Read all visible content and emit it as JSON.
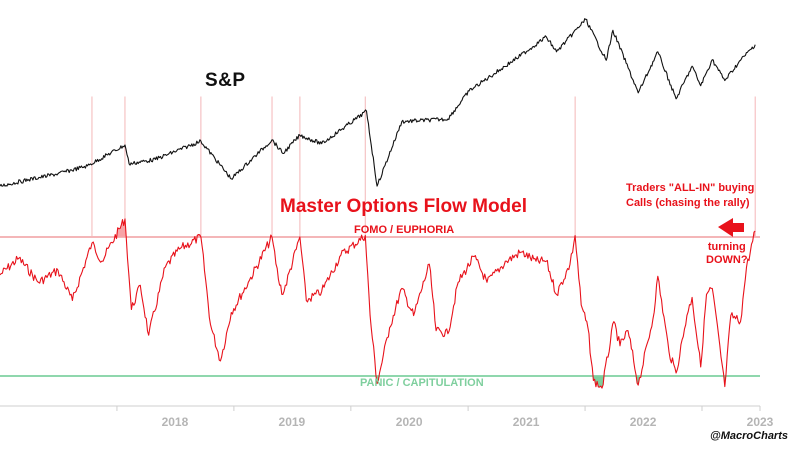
{
  "colors": {
    "spx_line": "#111111",
    "model_line": "#e8121b",
    "fomo_line": "#f4b6b8",
    "panic_line": "#8fd7ad",
    "fomo_fill": "#f7a3a7",
    "panic_fill": "#7fcf9e",
    "axis": "#cfcfcf",
    "tick_label": "#b5b5b5"
  },
  "labels": {
    "spx": "S&P",
    "model_title": "Master Options Flow Model",
    "fomo": "FOMO / EUPHORIA",
    "panic": "PANIC / CAPITULATION",
    "annotation_line1": "Traders \"ALL-IN\" buying",
    "annotation_line2": "Calls (chasing the rally)",
    "turning_line1": "turning",
    "turning_line2": "DOWN?",
    "credit": "@MacroCharts"
  },
  "chart_data": {
    "type": "line",
    "x_axis": {
      "range": [
        "2017-01-01",
        "2023-07-01"
      ],
      "tick_labels": [
        "2018",
        "2019",
        "2020",
        "2021",
        "2022",
        "2023"
      ]
    },
    "series": [
      {
        "name": "S&P",
        "points": [
          [
            "2017-01-01",
            2240
          ],
          [
            "2017-04-01",
            2340
          ],
          [
            "2017-07-01",
            2430
          ],
          [
            "2017-10-01",
            2550
          ],
          [
            "2018-01-26",
            2870
          ],
          [
            "2018-02-08",
            2580
          ],
          [
            "2018-05-01",
            2650
          ],
          [
            "2018-09-20",
            2930
          ],
          [
            "2018-12-24",
            2350
          ],
          [
            "2019-04-30",
            2950
          ],
          [
            "2019-06-03",
            2740
          ],
          [
            "2019-07-26",
            3020
          ],
          [
            "2019-10-02",
            2890
          ],
          [
            "2020-02-19",
            3390
          ],
          [
            "2020-03-23",
            2240
          ],
          [
            "2020-06-08",
            3230
          ],
          [
            "2020-10-30",
            3270
          ],
          [
            "2021-01-04",
            3700
          ],
          [
            "2021-06-01",
            4200
          ],
          [
            "2021-09-02",
            4530
          ],
          [
            "2021-10-04",
            4300
          ],
          [
            "2022-01-03",
            4800
          ],
          [
            "2022-03-08",
            4170
          ],
          [
            "2022-03-29",
            4630
          ],
          [
            "2022-06-16",
            3670
          ],
          [
            "2022-08-16",
            4300
          ],
          [
            "2022-10-12",
            3580
          ],
          [
            "2022-12-01",
            4080
          ],
          [
            "2022-12-28",
            3780
          ],
          [
            "2023-02-02",
            4180
          ],
          [
            "2023-03-13",
            3860
          ],
          [
            "2023-05-01",
            4170
          ],
          [
            "2023-06-16",
            4410
          ]
        ]
      },
      {
        "name": "Master Options Flow Model",
        "points": [
          [
            "2017-01-01",
            75
          ],
          [
            "2017-03-01",
            86
          ],
          [
            "2017-05-01",
            70
          ],
          [
            "2017-07-01",
            78
          ],
          [
            "2017-08-15",
            58
          ],
          [
            "2017-10-15",
            96
          ],
          [
            "2017-11-15",
            84
          ],
          [
            "2018-01-26",
            112
          ],
          [
            "2018-02-15",
            52
          ],
          [
            "2018-03-15",
            68
          ],
          [
            "2018-04-10",
            35
          ],
          [
            "2018-06-01",
            80
          ],
          [
            "2018-07-15",
            92
          ],
          [
            "2018-09-20",
            100
          ],
          [
            "2018-10-20",
            42
          ],
          [
            "2018-11-20",
            18
          ],
          [
            "2018-12-24",
            50
          ],
          [
            "2019-02-15",
            70
          ],
          [
            "2019-04-30",
            100
          ],
          [
            "2019-05-20",
            72
          ],
          [
            "2019-06-03",
            62
          ],
          [
            "2019-07-26",
            100
          ],
          [
            "2019-08-15",
            58
          ],
          [
            "2019-10-02",
            64
          ],
          [
            "2019-12-01",
            88
          ],
          [
            "2020-02-15",
            101
          ],
          [
            "2020-03-01",
            48
          ],
          [
            "2020-03-23",
            3
          ],
          [
            "2020-05-01",
            40
          ],
          [
            "2020-06-08",
            66
          ],
          [
            "2020-07-15",
            48
          ],
          [
            "2020-09-02",
            82
          ],
          [
            "2020-09-23",
            38
          ],
          [
            "2020-10-30",
            36
          ],
          [
            "2020-12-01",
            70
          ],
          [
            "2021-01-20",
            87
          ],
          [
            "2021-03-01",
            70
          ],
          [
            "2021-05-01",
            84
          ],
          [
            "2021-06-15",
            90
          ],
          [
            "2021-08-01",
            84
          ],
          [
            "2021-09-02",
            84
          ],
          [
            "2021-10-04",
            62
          ],
          [
            "2021-11-15",
            82
          ],
          [
            "2021-12-01",
            101
          ],
          [
            "2021-12-20",
            55
          ],
          [
            "2022-01-10",
            40
          ],
          [
            "2022-01-27",
            5
          ],
          [
            "2022-02-23",
            0
          ],
          [
            "2022-04-01",
            44
          ],
          [
            "2022-04-20",
            28
          ],
          [
            "2022-05-15",
            38
          ],
          [
            "2022-06-16",
            2
          ],
          [
            "2022-08-01",
            46
          ],
          [
            "2022-08-16",
            74
          ],
          [
            "2022-09-20",
            24
          ],
          [
            "2022-10-12",
            10
          ],
          [
            "2022-11-15",
            48
          ],
          [
            "2022-12-01",
            60
          ],
          [
            "2022-12-28",
            14
          ],
          [
            "2023-01-15",
            62
          ],
          [
            "2023-02-02",
            66
          ],
          [
            "2023-03-13",
            1
          ],
          [
            "2023-04-01",
            48
          ],
          [
            "2023-05-01",
            44
          ],
          [
            "2023-05-20",
            80
          ],
          [
            "2023-06-16",
            104
          ]
        ]
      }
    ],
    "reference_lines": [
      {
        "label": "FOMO / EUPHORIA",
        "value": 100
      },
      {
        "label": "PANIC / CAPITULATION",
        "value": 8
      }
    ],
    "vertical_markers": [
      "2017-10-15",
      "2018-01-26",
      "2018-09-20",
      "2019-04-30",
      "2019-07-26",
      "2020-02-15",
      "2021-12-01",
      "2023-06-16"
    ],
    "annotations": [
      "Traders \"ALL-IN\" buying Calls (chasing the rally)",
      "turning DOWN?"
    ],
    "grid": false,
    "legend": "none"
  }
}
